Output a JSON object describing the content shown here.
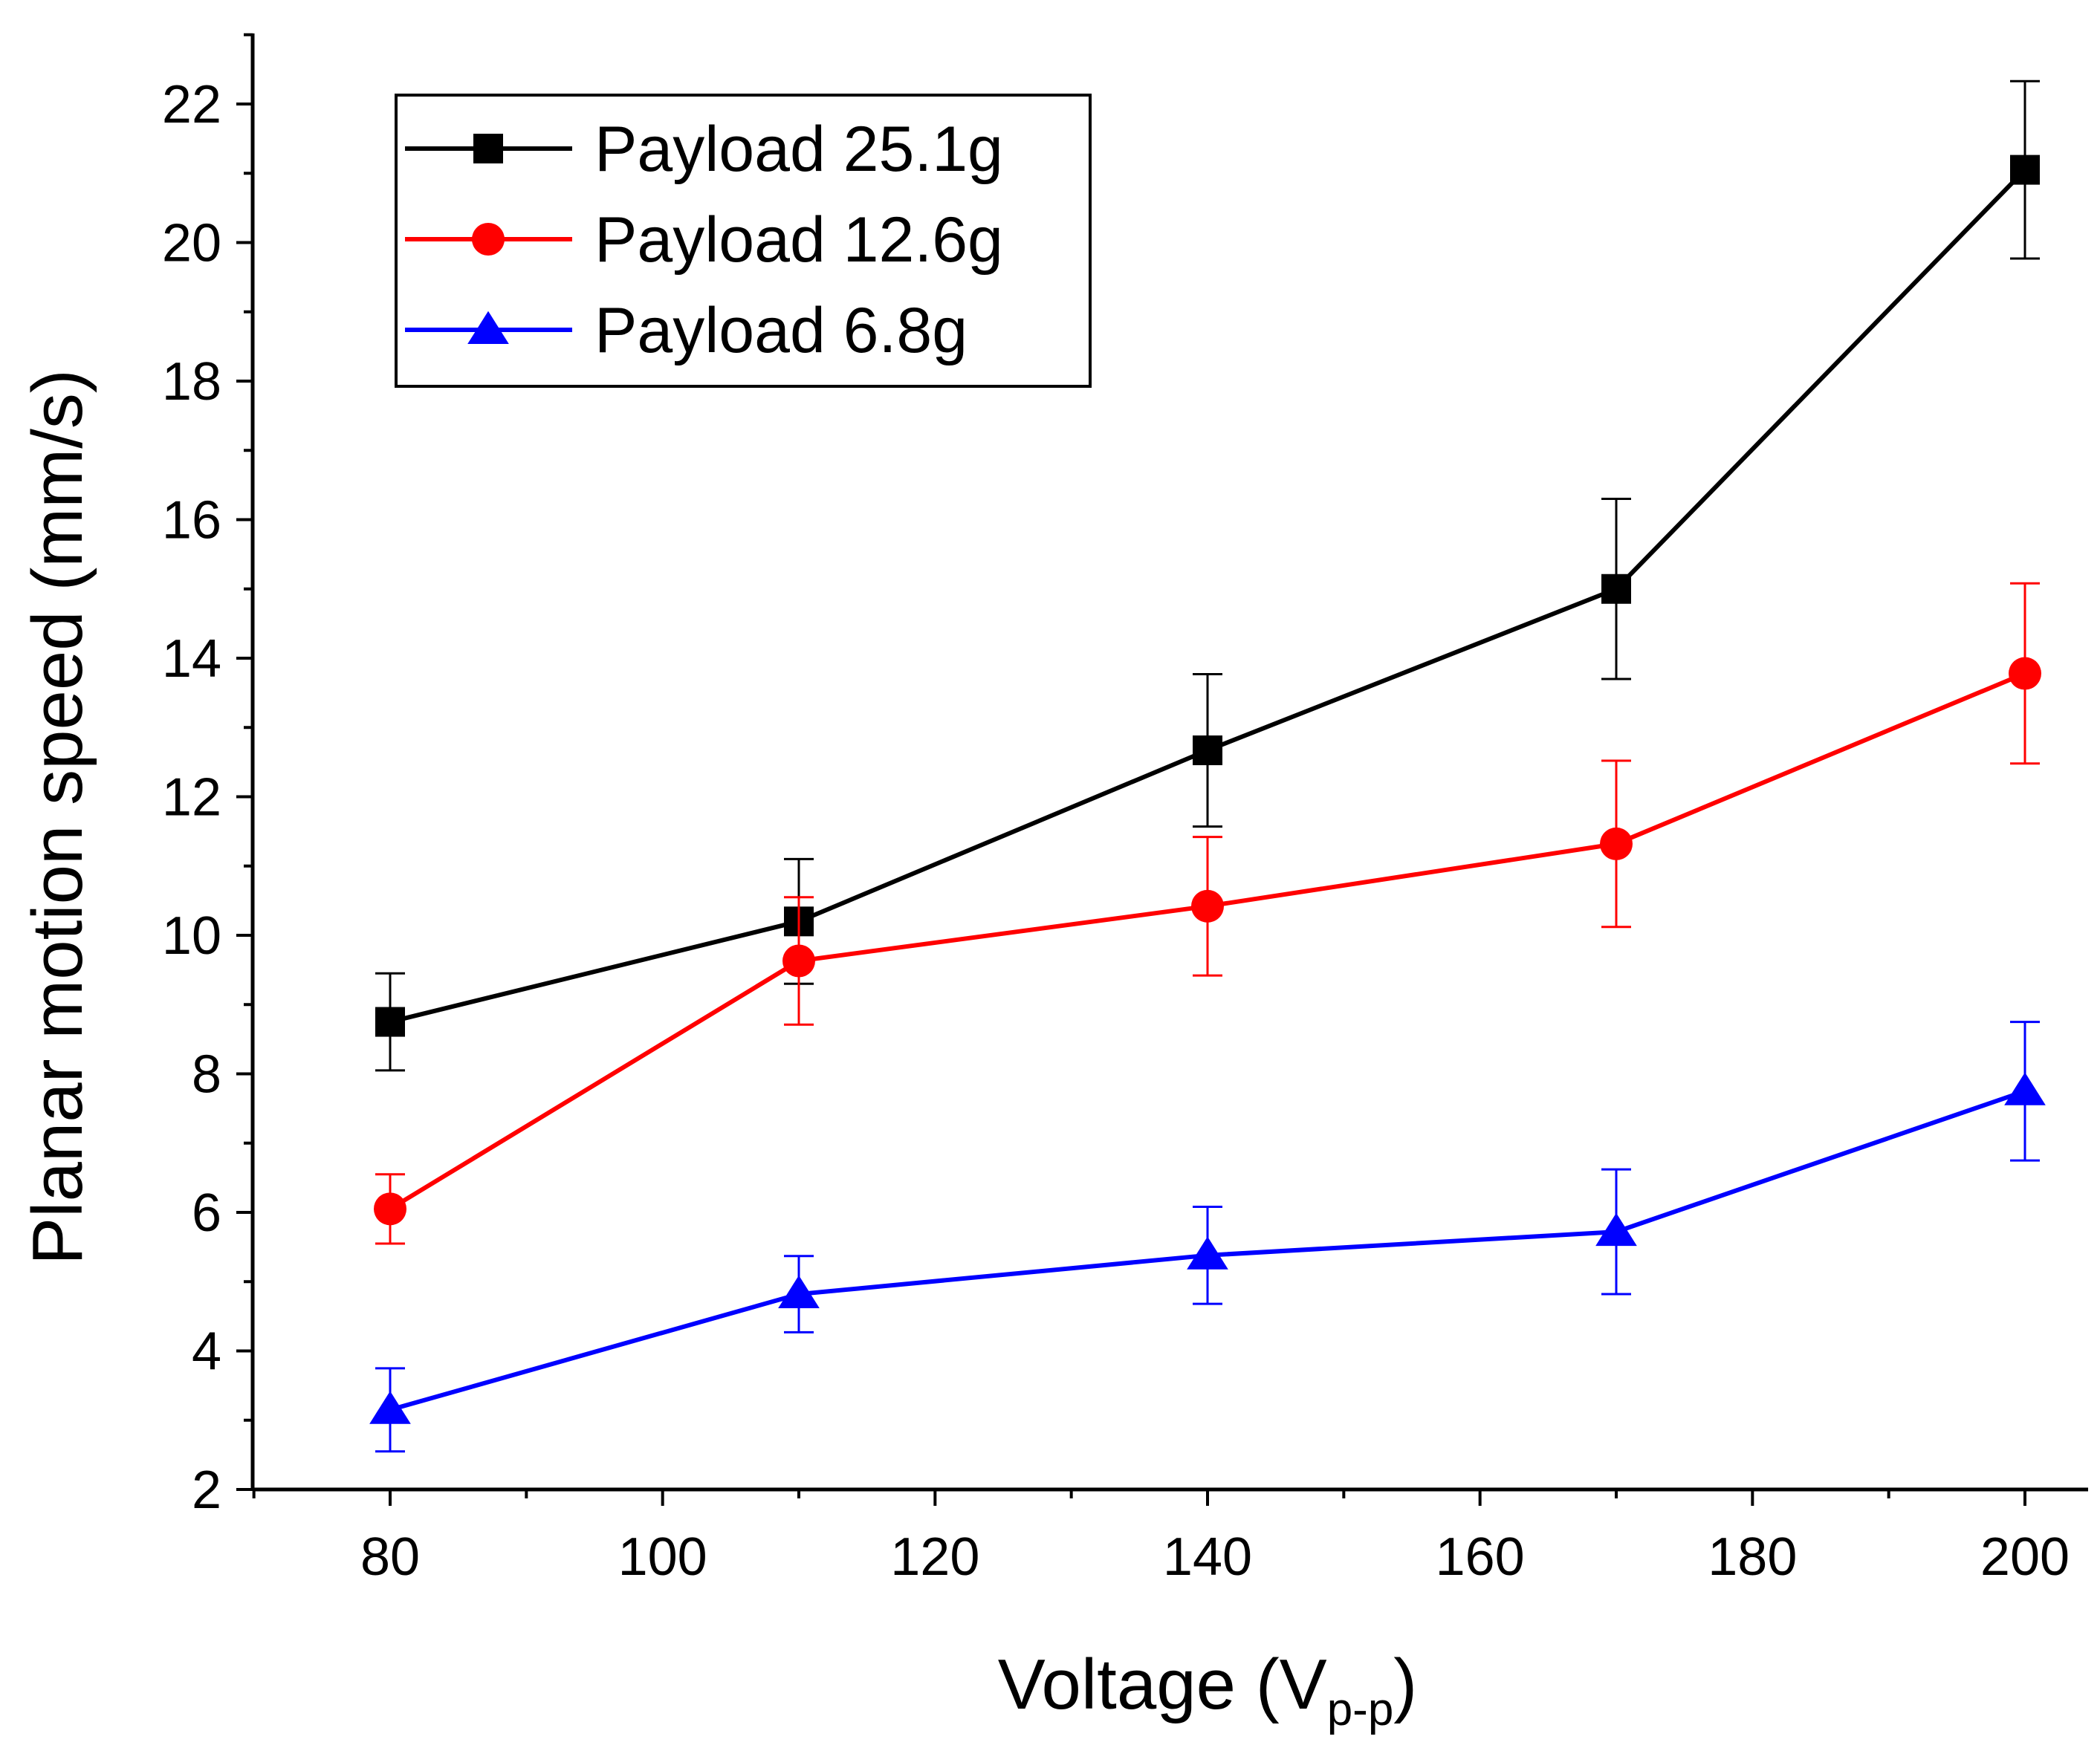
{
  "chart_data": {
    "type": "line",
    "title": "",
    "xlabel": "Voltage (V",
    "xlabel_subscript": "p-p",
    "xlabel_suffix": ")",
    "ylabel": "Planar motion speed (mm/s)",
    "xlim": [
      70,
      210
    ],
    "ylim": [
      2,
      23
    ],
    "x_ticks": [
      80,
      100,
      120,
      140,
      160,
      180,
      200
    ],
    "y_ticks": [
      2,
      4,
      6,
      8,
      10,
      12,
      14,
      16,
      18,
      20,
      22
    ],
    "grid": false,
    "legend_position": "top-left",
    "x": [
      80,
      110,
      140,
      170,
      200
    ],
    "series": [
      {
        "name": "Payload 25.1g",
        "color": "#000000",
        "marker": "square",
        "values": [
          8.75,
          10.2,
          12.67,
          15.0,
          21.05
        ],
        "errors": [
          0.7,
          0.9,
          1.1,
          1.3,
          1.28
        ]
      },
      {
        "name": "Payload 12.6g",
        "color": "#ff0000",
        "marker": "circle",
        "values": [
          6.05,
          9.63,
          10.42,
          11.32,
          13.78
        ],
        "errors": [
          0.5,
          0.92,
          1.0,
          1.2,
          1.3
        ]
      },
      {
        "name": "Payload 6.8g",
        "color": "#0000ff",
        "marker": "triangle",
        "values": [
          3.15,
          4.82,
          5.38,
          5.72,
          7.75
        ],
        "errors": [
          0.6,
          0.55,
          0.7,
          0.9,
          1.0
        ]
      }
    ]
  }
}
